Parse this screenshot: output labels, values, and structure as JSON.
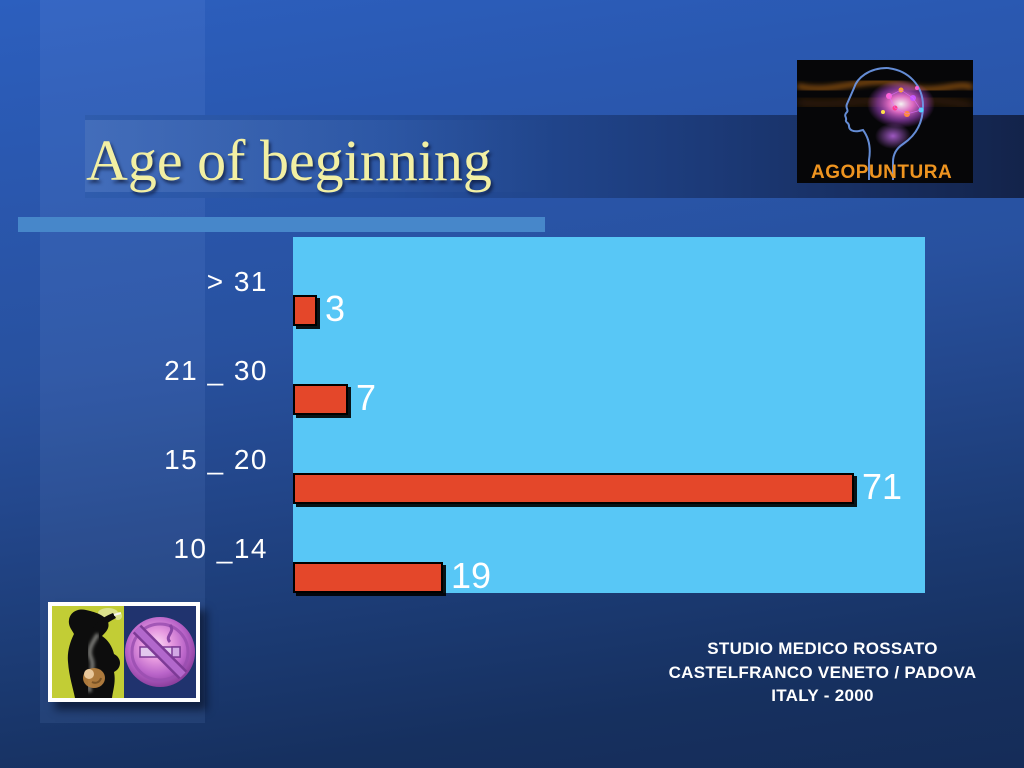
{
  "slide": {
    "title": "Age of beginning",
    "credit": {
      "line1": "STUDIO MEDICO ROSSATO",
      "line2": "CASTELFRANCO VENETO / PADOVA",
      "line3": "ITALY - 2000"
    },
    "logo": {
      "label": "AGOPUNTURA"
    }
  },
  "chart_data": {
    "type": "bar",
    "orientation": "horizontal",
    "title": "Age of beginning",
    "categories": [
      "> 31",
      "21 _ 30",
      "15 _ 20",
      "10 _14"
    ],
    "values": [
      3,
      7,
      71,
      19
    ],
    "xlim": [
      0,
      80
    ],
    "grid": false,
    "legend": false,
    "plot_background": "#58c7f6",
    "bar_color": "#e4472a",
    "bar_border_color": "#000000",
    "category_label_color": "#ffffff",
    "value_label_color": "#ffffff"
  },
  "colors": {
    "background_top": "#2c5fbe",
    "background_bottom": "#152c58",
    "banner_left": "#2f5cad",
    "banner_right": "#13234a",
    "underline_bar": "#4787ca",
    "title_text": "#f2efa3",
    "logo_text": "#ee9420",
    "credit_text": "#ffffff"
  }
}
